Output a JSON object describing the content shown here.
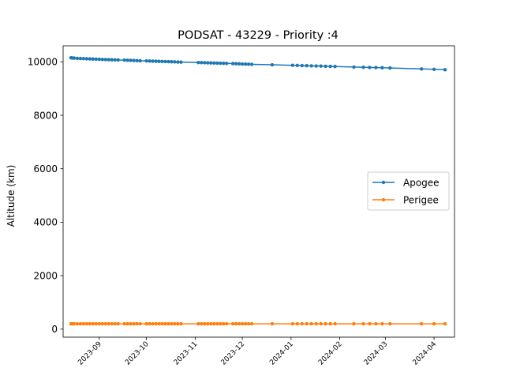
{
  "chart_data": {
    "type": "line",
    "title": "PODSAT - 43229 - Priority :4",
    "xlabel": "",
    "ylabel": "Altitude (km)",
    "x_type": "date",
    "xlim": [
      "2023-08-09",
      "2024-04-14"
    ],
    "ylim": [
      -300,
      10600
    ],
    "xticks": [
      "2023-09",
      "2023-10",
      "2023-11",
      "2023-12",
      "2024-01",
      "2024-02",
      "2024-03",
      "2024-04"
    ],
    "yticks": [
      0,
      2000,
      4000,
      6000,
      8000,
      10000
    ],
    "grid": false,
    "legend": "center-right",
    "series": [
      {
        "name": "Apogee",
        "color": "#1f77b4",
        "points": [
          [
            "2023-08-14",
            10150
          ],
          [
            "2023-08-15",
            10145
          ],
          [
            "2023-08-16",
            10140
          ],
          [
            "2023-08-18",
            10130
          ],
          [
            "2023-08-20",
            10125
          ],
          [
            "2023-08-22",
            10120
          ],
          [
            "2023-08-24",
            10115
          ],
          [
            "2023-08-26",
            10110
          ],
          [
            "2023-08-28",
            10105
          ],
          [
            "2023-08-30",
            10100
          ],
          [
            "2023-09-01",
            10095
          ],
          [
            "2023-09-03",
            10090
          ],
          [
            "2023-09-05",
            10085
          ],
          [
            "2023-09-07",
            10082
          ],
          [
            "2023-09-09",
            10078
          ],
          [
            "2023-09-11",
            10074
          ],
          [
            "2023-09-13",
            10070
          ],
          [
            "2023-09-17",
            10065
          ],
          [
            "2023-09-19",
            10060
          ],
          [
            "2023-09-21",
            10055
          ],
          [
            "2023-09-23",
            10050
          ],
          [
            "2023-09-25",
            10045
          ],
          [
            "2023-09-27",
            10040
          ],
          [
            "2023-10-01",
            10035
          ],
          [
            "2023-10-03",
            10030
          ],
          [
            "2023-10-05",
            10026
          ],
          [
            "2023-10-07",
            10022
          ],
          [
            "2023-10-09",
            10018
          ],
          [
            "2023-10-11",
            10014
          ],
          [
            "2023-10-13",
            10010
          ],
          [
            "2023-10-15",
            10006
          ],
          [
            "2023-10-17",
            10002
          ],
          [
            "2023-10-19",
            9998
          ],
          [
            "2023-10-21",
            9994
          ],
          [
            "2023-10-23",
            9990
          ],
          [
            "2023-11-03",
            9975
          ],
          [
            "2023-11-05",
            9970
          ],
          [
            "2023-11-07",
            9966
          ],
          [
            "2023-11-09",
            9962
          ],
          [
            "2023-11-11",
            9958
          ],
          [
            "2023-11-13",
            9955
          ],
          [
            "2023-11-15",
            9952
          ],
          [
            "2023-11-17",
            9948
          ],
          [
            "2023-11-19",
            9945
          ],
          [
            "2023-11-21",
            9942
          ],
          [
            "2023-11-25",
            9935
          ],
          [
            "2023-11-27",
            9930
          ],
          [
            "2023-11-29",
            9925
          ],
          [
            "2023-12-01",
            9920
          ],
          [
            "2023-12-03",
            9915
          ],
          [
            "2023-12-05",
            9910
          ],
          [
            "2023-12-07",
            9906
          ],
          [
            "2023-12-20",
            9890
          ],
          [
            "2024-01-02",
            9870
          ],
          [
            "2024-01-05",
            9865
          ],
          [
            "2024-01-08",
            9860
          ],
          [
            "2024-01-11",
            9855
          ],
          [
            "2024-01-14",
            9850
          ],
          [
            "2024-01-17",
            9845
          ],
          [
            "2024-01-20",
            9840
          ],
          [
            "2024-01-23",
            9835
          ],
          [
            "2024-01-26",
            9830
          ],
          [
            "2024-01-29",
            9825
          ],
          [
            "2024-02-10",
            9805
          ],
          [
            "2024-02-16",
            9795
          ],
          [
            "2024-02-20",
            9790
          ],
          [
            "2024-02-24",
            9785
          ],
          [
            "2024-02-28",
            9780
          ],
          [
            "2024-03-04",
            9770
          ],
          [
            "2024-03-24",
            9735
          ],
          [
            "2024-04-01",
            9720
          ],
          [
            "2024-04-08",
            9705
          ]
        ]
      },
      {
        "name": "Perigee",
        "color": "#ff7f0e",
        "points": [
          [
            "2023-08-14",
            200
          ],
          [
            "2023-08-15",
            200
          ],
          [
            "2023-08-16",
            200
          ],
          [
            "2023-08-18",
            200
          ],
          [
            "2023-08-20",
            200
          ],
          [
            "2023-08-22",
            200
          ],
          [
            "2023-08-24",
            200
          ],
          [
            "2023-08-26",
            200
          ],
          [
            "2023-08-28",
            200
          ],
          [
            "2023-08-30",
            200
          ],
          [
            "2023-09-01",
            200
          ],
          [
            "2023-09-03",
            200
          ],
          [
            "2023-09-05",
            200
          ],
          [
            "2023-09-07",
            200
          ],
          [
            "2023-09-09",
            200
          ],
          [
            "2023-09-11",
            200
          ],
          [
            "2023-09-13",
            200
          ],
          [
            "2023-09-17",
            200
          ],
          [
            "2023-09-19",
            200
          ],
          [
            "2023-09-21",
            200
          ],
          [
            "2023-09-23",
            200
          ],
          [
            "2023-09-25",
            200
          ],
          [
            "2023-09-27",
            200
          ],
          [
            "2023-10-01",
            200
          ],
          [
            "2023-10-03",
            200
          ],
          [
            "2023-10-05",
            200
          ],
          [
            "2023-10-07",
            200
          ],
          [
            "2023-10-09",
            200
          ],
          [
            "2023-10-11",
            200
          ],
          [
            "2023-10-13",
            200
          ],
          [
            "2023-10-15",
            200
          ],
          [
            "2023-10-17",
            200
          ],
          [
            "2023-10-19",
            200
          ],
          [
            "2023-10-21",
            200
          ],
          [
            "2023-10-23",
            200
          ],
          [
            "2023-11-03",
            200
          ],
          [
            "2023-11-05",
            200
          ],
          [
            "2023-11-07",
            200
          ],
          [
            "2023-11-09",
            200
          ],
          [
            "2023-11-11",
            200
          ],
          [
            "2023-11-13",
            200
          ],
          [
            "2023-11-15",
            200
          ],
          [
            "2023-11-17",
            200
          ],
          [
            "2023-11-19",
            200
          ],
          [
            "2023-11-21",
            200
          ],
          [
            "2023-11-25",
            200
          ],
          [
            "2023-11-27",
            200
          ],
          [
            "2023-11-29",
            200
          ],
          [
            "2023-12-01",
            200
          ],
          [
            "2023-12-03",
            200
          ],
          [
            "2023-12-05",
            200
          ],
          [
            "2023-12-07",
            200
          ],
          [
            "2023-12-20",
            200
          ],
          [
            "2024-01-02",
            200
          ],
          [
            "2024-01-05",
            200
          ],
          [
            "2024-01-08",
            200
          ],
          [
            "2024-01-11",
            200
          ],
          [
            "2024-01-14",
            200
          ],
          [
            "2024-01-17",
            200
          ],
          [
            "2024-01-20",
            200
          ],
          [
            "2024-01-23",
            200
          ],
          [
            "2024-01-26",
            200
          ],
          [
            "2024-01-29",
            200
          ],
          [
            "2024-02-10",
            200
          ],
          [
            "2024-02-16",
            200
          ],
          [
            "2024-02-20",
            200
          ],
          [
            "2024-02-24",
            200
          ],
          [
            "2024-02-28",
            200
          ],
          [
            "2024-03-04",
            200
          ],
          [
            "2024-03-24",
            200
          ],
          [
            "2024-04-01",
            200
          ],
          [
            "2024-04-08",
            200
          ]
        ]
      }
    ]
  }
}
